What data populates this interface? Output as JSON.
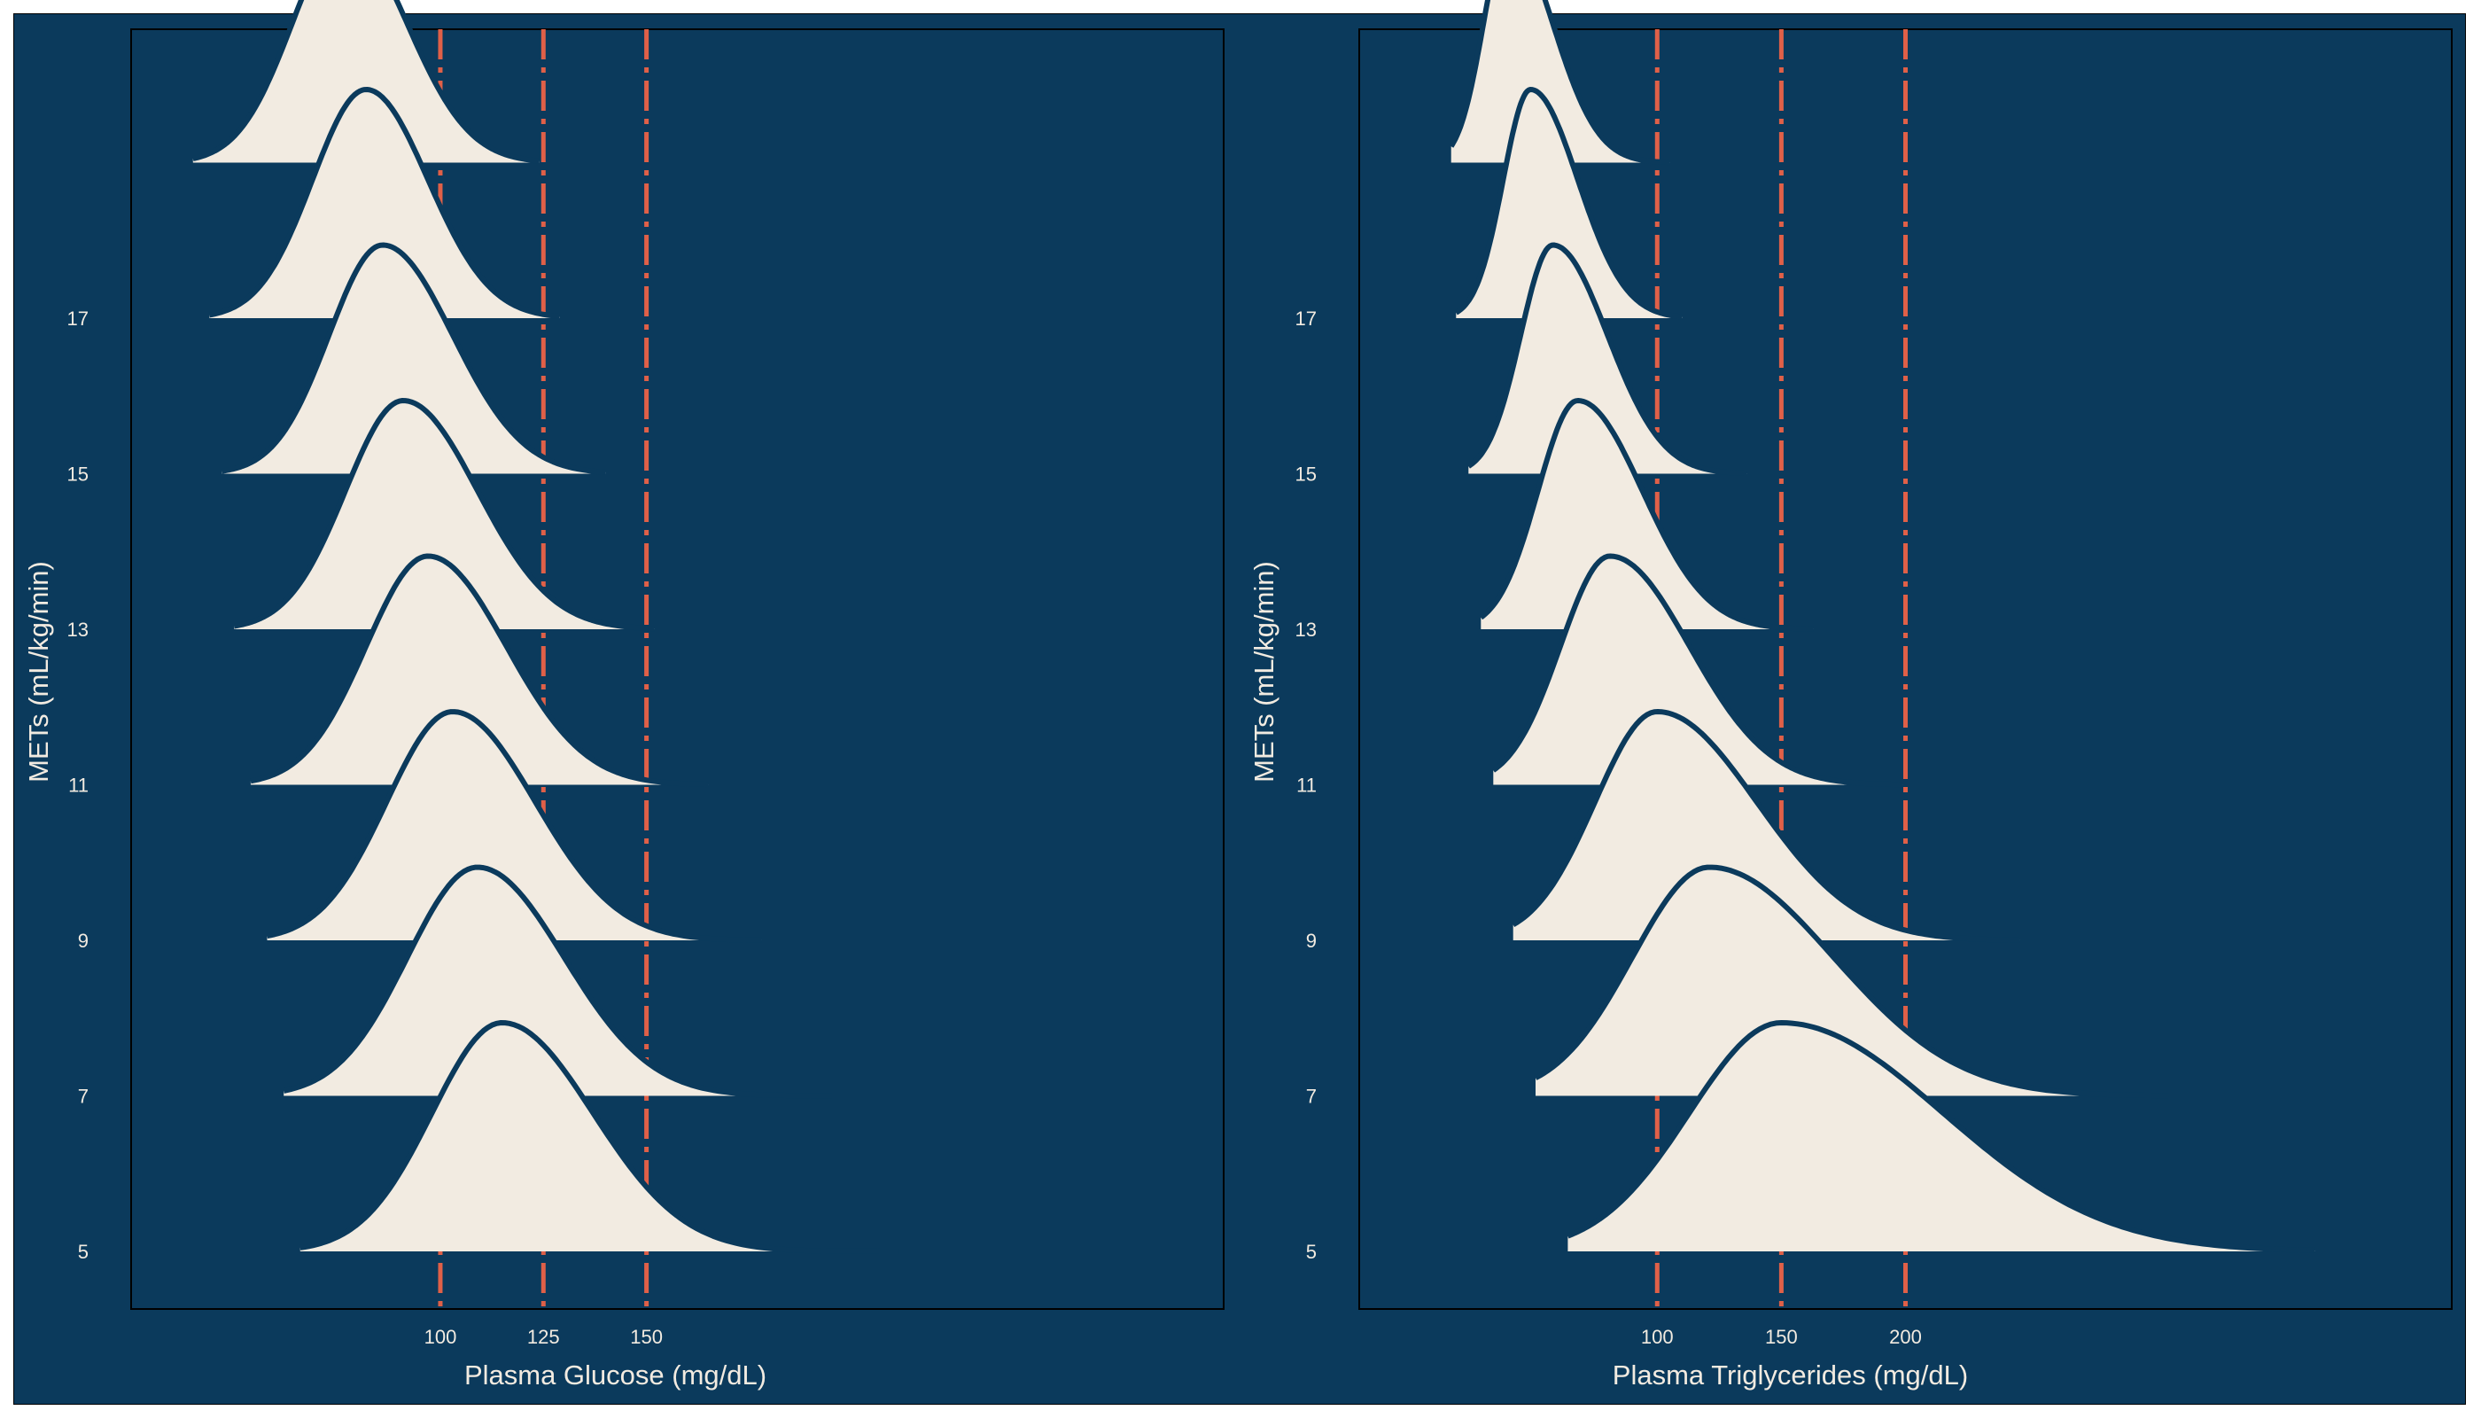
{
  "colors": {
    "background": "#0b3a5c",
    "ridge_fill": "#f2ebe1",
    "ridge_outline": "#0b3a5c",
    "reference_line": "#e06048",
    "text": "#f2ebe1",
    "frame": "#000000"
  },
  "chart_data": [
    {
      "type": "ridgeline",
      "xlabel": "Plasma Glucose (mg/dL)",
      "ylabel": "METs (mL/kg/min)",
      "xlim": [
        25,
        290
      ],
      "x_ticks": [
        100,
        125,
        150
      ],
      "y_ticks": [
        5,
        7,
        9,
        11,
        13,
        15,
        17
      ],
      "reference_lines": [
        100,
        125,
        150
      ],
      "grid": false,
      "legend": "none",
      "ridges": [
        {
          "mets": 5,
          "peak": 115,
          "spread_left": 17,
          "spread_right": 22,
          "x_min": 66,
          "x_max": 211
        },
        {
          "mets": 7,
          "peak": 109,
          "spread_left": 17,
          "spread_right": 21,
          "x_min": 62,
          "x_max": 195
        },
        {
          "mets": 9,
          "peak": 103,
          "spread_left": 16,
          "spread_right": 20,
          "x_min": 58,
          "x_max": 178
        },
        {
          "mets": 11,
          "peak": 97,
          "spread_left": 15,
          "spread_right": 19,
          "x_min": 54,
          "x_max": 165
        },
        {
          "mets": 13,
          "peak": 91,
          "spread_left": 14,
          "spread_right": 18,
          "x_min": 50,
          "x_max": 152
        },
        {
          "mets": 15,
          "peak": 86,
          "spread_left": 13,
          "spread_right": 17,
          "x_min": 47,
          "x_max": 140
        },
        {
          "mets": 17,
          "peak": 82,
          "spread_left": 13,
          "spread_right": 15,
          "x_min": 44,
          "x_max": 129
        },
        {
          "mets": 19,
          "peak": 77,
          "spread_left": 13,
          "spread_right": 15,
          "x_min": 40,
          "x_max": 124
        }
      ]
    },
    {
      "type": "ridgeline",
      "xlabel": "Plasma Triglycerides (mg/dL)",
      "ylabel": "METs (mL/kg/min)",
      "xlim": [
        -20,
        420
      ],
      "x_ticks": [
        100,
        150,
        200
      ],
      "y_ticks": [
        5,
        7,
        9,
        11,
        13,
        15,
        17
      ],
      "reference_lines": [
        100,
        150,
        200
      ],
      "grid": false,
      "legend": "none",
      "ridges": [
        {
          "mets": 5,
          "peak": 150,
          "spread_left": 37,
          "spread_right": 65,
          "x_min": 64,
          "x_max": 365
        },
        {
          "mets": 7,
          "peak": 121,
          "spread_left": 31,
          "spread_right": 50,
          "x_min": 51,
          "x_max": 306
        },
        {
          "mets": 9,
          "peak": 100,
          "spread_left": 25,
          "spread_right": 40,
          "x_min": 42,
          "x_max": 246
        },
        {
          "mets": 11,
          "peak": 81,
          "spread_left": 20,
          "spread_right": 32,
          "x_min": 34,
          "x_max": 199
        },
        {
          "mets": 13,
          "peak": 68,
          "spread_left": 16,
          "spread_right": 26,
          "x_min": 29,
          "x_max": 163
        },
        {
          "mets": 15,
          "peak": 58,
          "spread_left": 13,
          "spread_right": 22,
          "x_min": 24,
          "x_max": 136
        },
        {
          "mets": 17,
          "peak": 49,
          "spread_left": 11,
          "spread_right": 19,
          "x_min": 19,
          "x_max": 110
        },
        {
          "mets": 19,
          "peak": 40,
          "spread_left": 10,
          "spread_right": 18,
          "x_min": 17,
          "x_max": 105
        }
      ]
    }
  ]
}
